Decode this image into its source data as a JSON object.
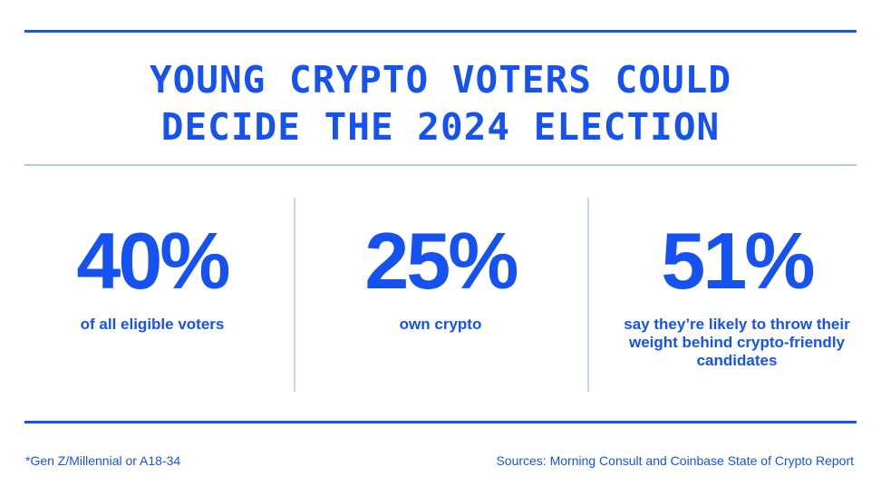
{
  "headline": {
    "line1": "YOUNG CRYPTO VOTERS COULD",
    "line2": "DECIDE THE 2024 ELECTION"
  },
  "stats": [
    {
      "value": "40%",
      "label": "of all eligible voters"
    },
    {
      "value": "25%",
      "label": "own crypto"
    },
    {
      "value": "51%",
      "label": "say they’re likely to throw their weight behind crypto-friendly candidates"
    }
  ],
  "footer": {
    "note": "*Gen Z/Millennial or A18-34",
    "sources": "Sources: Morning Consult and Coinbase State of Crypto Report"
  },
  "colors": {
    "accent": "#1652f0",
    "divider_light": "#b7c9f7",
    "background": "#ffffff"
  }
}
